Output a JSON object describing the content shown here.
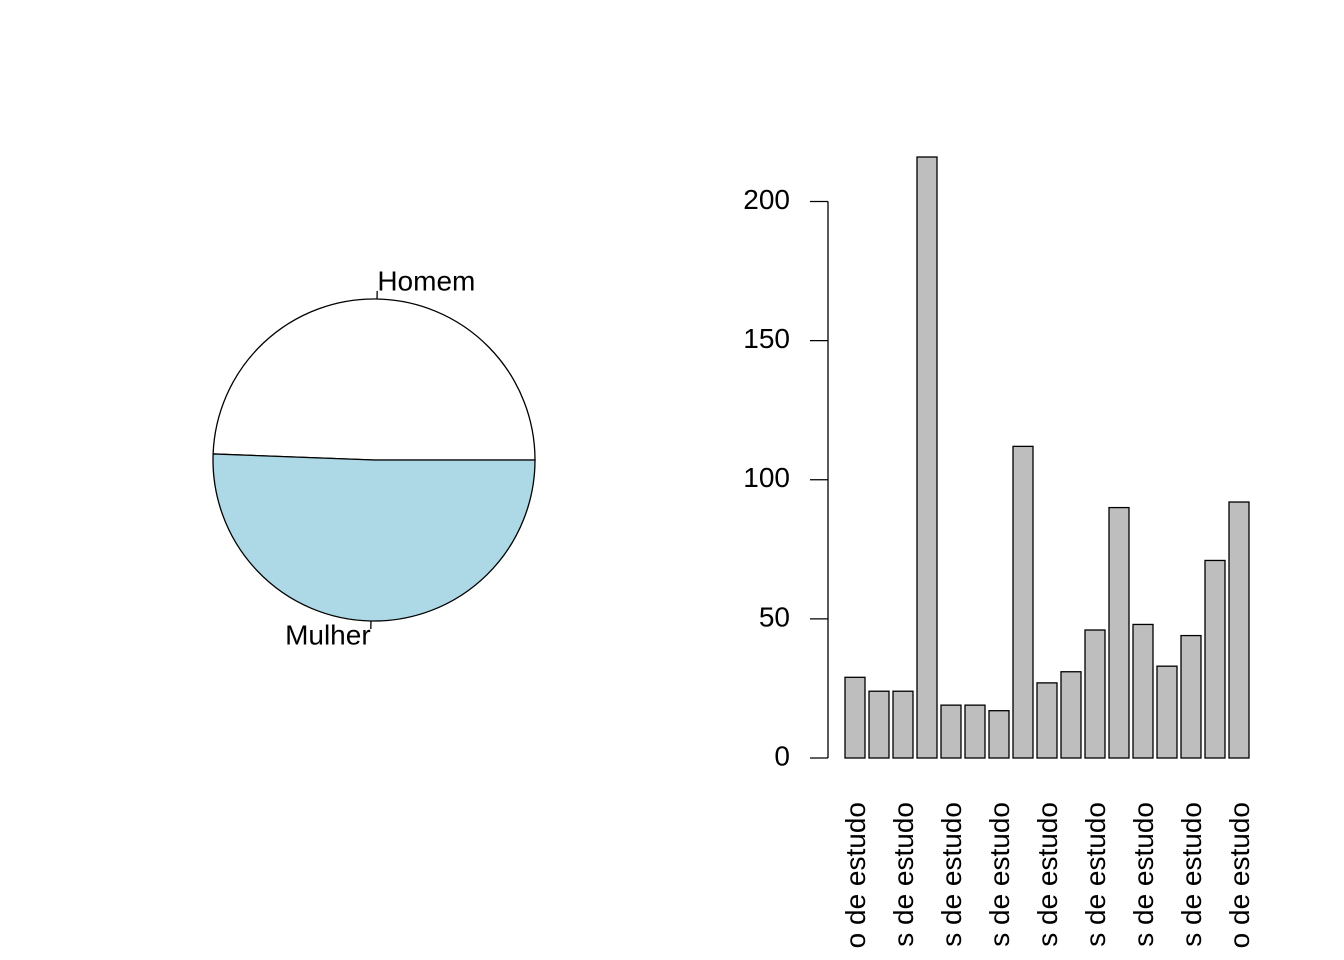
{
  "chart_data": [
    {
      "type": "pie",
      "labels": [
        "Homem",
        "Mulher"
      ],
      "values": [
        49.4,
        50.6
      ],
      "colors": [
        "#ffffff",
        "#add8e6"
      ],
      "title": ""
    },
    {
      "type": "bar",
      "categories": [
        "o de estudo",
        "s de estudo",
        "s de estudo",
        "s de estudo",
        "s de estudo",
        "s de estudo",
        "s de estudo",
        "s de estudo",
        "s de estudo",
        "s de estudo",
        "s de estudo",
        "s de estudo",
        "s de estudo",
        "s de estudo",
        "s de estudo",
        "s de estudo",
        "o de estudo"
      ],
      "visible_category_labels": [
        "o de estudo",
        "s de estudo",
        "s de estudo",
        "s de estudo",
        "s de estudo",
        "s de estudo",
        "s de estudo",
        "s de estudo",
        "o de estudo"
      ],
      "values": [
        29,
        24,
        24,
        216,
        19,
        19,
        17,
        112,
        27,
        31,
        46,
        90,
        48,
        33,
        44,
        71,
        92
      ],
      "ylim": [
        0,
        216
      ],
      "yticks": [
        0,
        50,
        100,
        150,
        200
      ],
      "bar_color": "#bebebe",
      "title": "",
      "xlabel": "",
      "ylabel": ""
    }
  ]
}
